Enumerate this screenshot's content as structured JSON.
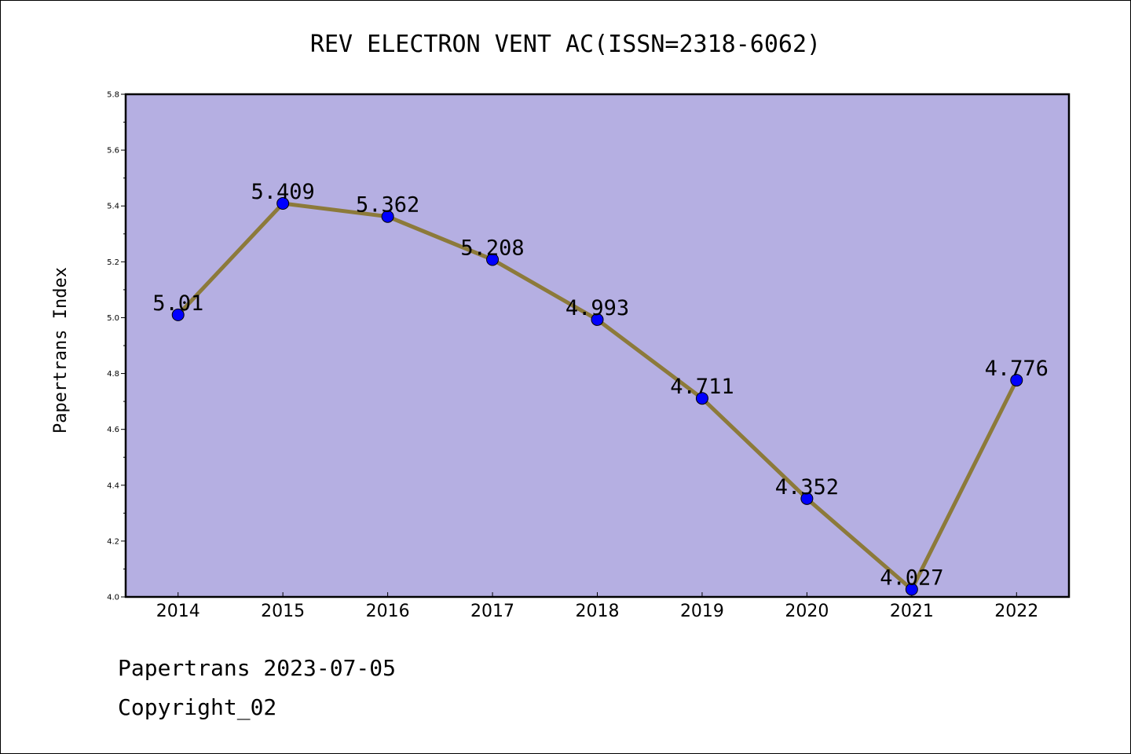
{
  "chart_data": {
    "type": "line",
    "title": "REV ELECTRON VENT AC(ISSN=2318-6062)",
    "ylabel": "Papertrans Index",
    "xlabel": "",
    "categories": [
      "2014",
      "2015",
      "2016",
      "2017",
      "2018",
      "2019",
      "2020",
      "2021",
      "2022"
    ],
    "series": [
      {
        "values": [
          5.01,
          5.409,
          5.362,
          5.208,
          4.993,
          4.711,
          4.352,
          4.027,
          4.776
        ],
        "labels": [
          "5.01",
          "5.409",
          "5.362",
          "5.208",
          "4.993",
          "4.711",
          "4.352",
          "4.027",
          "4.776"
        ]
      }
    ],
    "ylim": [
      4.0,
      5.8
    ],
    "yticks": [
      "4.0",
      "4.2",
      "4.4",
      "4.6",
      "4.8",
      "5.0",
      "5.2",
      "5.4",
      "5.6",
      "5.8"
    ],
    "grid": false,
    "colors": {
      "plot_background": "#b5afe2",
      "line": "#8c7a3a",
      "marker": "#0000ff"
    }
  },
  "footer": {
    "line1": "Papertrans 2023-07-05",
    "line2": "Copyright_02"
  }
}
